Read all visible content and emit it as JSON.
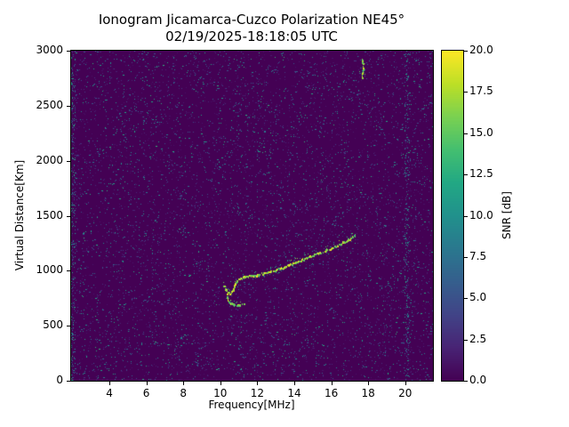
{
  "chart_data": {
    "type": "heatmap",
    "title": "Ionogram Jicamarca-Cuzco Polarization NE45°",
    "subtitle": "02/19/2025-18:18:05 UTC",
    "xlabel": "Frequency[MHz]",
    "ylabel": "Virtual Distance[Km]",
    "colorbar_label": "SNR [dB]",
    "colormap": "viridis",
    "grid": false,
    "xlim": [
      1.93,
      21.5
    ],
    "ylim": [
      0,
      3000
    ],
    "clim": [
      0,
      20
    ],
    "x_ticks": [
      4,
      6,
      8,
      10,
      12,
      14,
      16,
      18,
      20
    ],
    "y_ticks": [
      0,
      500,
      1000,
      1500,
      2000,
      2500,
      3000
    ],
    "colorbar_ticks": [
      "0.0",
      "2.5",
      "5.0",
      "7.5",
      "10.0",
      "12.5",
      "15.0",
      "17.5",
      "20.0"
    ],
    "background_snr_db": 0,
    "colors": {
      "background_min": "#440154",
      "peak": "#fde725"
    },
    "noise": {
      "density": 0.05,
      "snr_range_db": [
        1,
        13
      ],
      "seed": 20250219,
      "dense_columns_mhz": [
        2.05,
        20.1
      ]
    },
    "series": [
      {
        "name": "f-region-echo-trace",
        "snr_db": [
          14,
          20
        ],
        "points": [
          [
            10.2,
            865
          ],
          [
            10.25,
            845
          ],
          [
            10.3,
            825
          ],
          [
            10.4,
            805
          ],
          [
            10.5,
            795
          ],
          [
            10.6,
            800
          ],
          [
            10.7,
            825
          ],
          [
            10.75,
            855
          ],
          [
            10.8,
            880
          ],
          [
            10.9,
            905
          ],
          [
            11.0,
            920
          ],
          [
            11.15,
            932
          ],
          [
            11.3,
            940
          ],
          [
            11.5,
            948
          ],
          [
            11.7,
            953
          ],
          [
            11.9,
            958
          ],
          [
            12.1,
            965
          ],
          [
            12.35,
            975
          ],
          [
            12.6,
            988
          ],
          [
            12.85,
            1000
          ],
          [
            13.1,
            1015
          ],
          [
            13.35,
            1030
          ],
          [
            13.6,
            1045
          ],
          [
            13.85,
            1062
          ],
          [
            14.1,
            1078
          ],
          [
            14.35,
            1095
          ],
          [
            14.6,
            1112
          ],
          [
            14.85,
            1128
          ],
          [
            15.1,
            1145
          ],
          [
            15.35,
            1160
          ],
          [
            15.6,
            1178
          ],
          [
            15.85,
            1195
          ],
          [
            16.1,
            1213
          ],
          [
            16.35,
            1232
          ],
          [
            16.6,
            1252
          ],
          [
            16.85,
            1275
          ],
          [
            17.05,
            1295
          ],
          [
            17.2,
            1312
          ],
          [
            17.35,
            1332
          ]
        ]
      },
      {
        "name": "lower-echo-hook",
        "snr_db": [
          13,
          20
        ],
        "points": [
          [
            10.35,
            780
          ],
          [
            10.4,
            745
          ],
          [
            10.45,
            718
          ],
          [
            10.55,
            702
          ],
          [
            10.7,
            693
          ],
          [
            10.85,
            687
          ],
          [
            11.0,
            687
          ],
          [
            11.15,
            691
          ],
          [
            11.3,
            698
          ]
        ]
      },
      {
        "name": "interference-streak",
        "snr_db": [
          14,
          20
        ],
        "points": [
          [
            17.68,
            2755
          ],
          [
            17.7,
            2800
          ],
          [
            17.71,
            2845
          ],
          [
            17.7,
            2890
          ],
          [
            17.69,
            2930
          ]
        ]
      }
    ]
  }
}
